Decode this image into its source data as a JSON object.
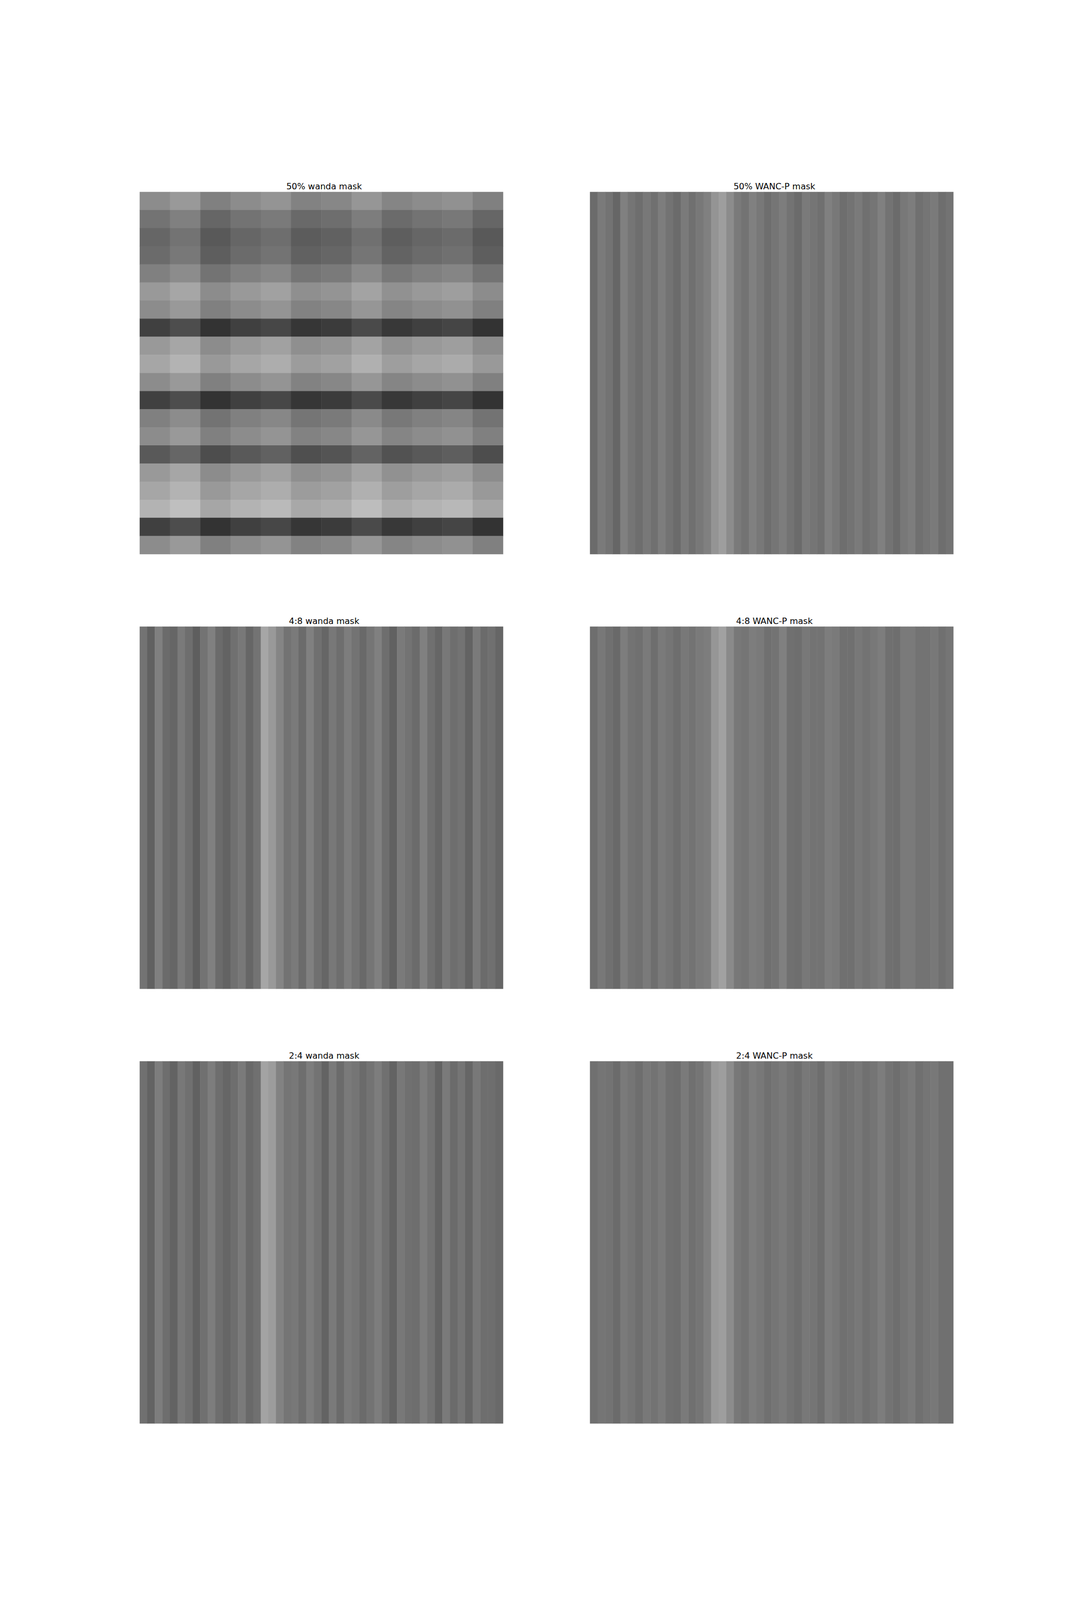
{
  "chart_data": [
    {
      "type": "heatmap",
      "title": "50% wanda mask",
      "tick_labels": false,
      "color_range": [
        0,
        1
      ],
      "cells": [
        [
          0.45,
          0.4,
          0.5,
          0.45,
          0.42,
          0.49,
          0.47,
          0.41,
          0.48,
          0.45,
          0.43,
          0.5
        ],
        [
          0.55,
          0.5,
          0.6,
          0.55,
          0.52,
          0.59,
          0.57,
          0.51,
          0.58,
          0.55,
          0.53,
          0.6
        ],
        [
          0.6,
          0.55,
          0.65,
          0.6,
          0.57,
          0.64,
          0.62,
          0.56,
          0.63,
          0.6,
          0.58,
          0.65
        ],
        [
          0.58,
          0.53,
          0.63,
          0.58,
          0.55,
          0.62,
          0.6,
          0.54,
          0.61,
          0.58,
          0.56,
          0.63
        ],
        [
          0.5,
          0.45,
          0.55,
          0.5,
          0.47,
          0.54,
          0.52,
          0.46,
          0.53,
          0.5,
          0.48,
          0.55
        ],
        [
          0.4,
          0.35,
          0.45,
          0.4,
          0.37,
          0.44,
          0.42,
          0.36,
          0.43,
          0.4,
          0.38,
          0.45
        ],
        [
          0.45,
          0.4,
          0.5,
          0.45,
          0.42,
          0.49,
          0.47,
          0.41,
          0.48,
          0.45,
          0.43,
          0.5
        ],
        [
          0.75,
          0.7,
          0.8,
          0.75,
          0.72,
          0.79,
          0.77,
          0.71,
          0.78,
          0.75,
          0.73,
          0.8
        ],
        [
          0.4,
          0.35,
          0.45,
          0.4,
          0.37,
          0.44,
          0.42,
          0.36,
          0.43,
          0.4,
          0.38,
          0.45
        ],
        [
          0.35,
          0.3,
          0.4,
          0.35,
          0.32,
          0.39,
          0.37,
          0.31,
          0.38,
          0.35,
          0.33,
          0.4
        ],
        [
          0.45,
          0.4,
          0.5,
          0.45,
          0.42,
          0.49,
          0.47,
          0.41,
          0.48,
          0.45,
          0.43,
          0.5
        ],
        [
          0.75,
          0.7,
          0.8,
          0.75,
          0.72,
          0.79,
          0.77,
          0.71,
          0.78,
          0.75,
          0.73,
          0.8
        ],
        [
          0.5,
          0.45,
          0.55,
          0.5,
          0.47,
          0.54,
          0.52,
          0.46,
          0.53,
          0.5,
          0.48,
          0.55
        ],
        [
          0.45,
          0.4,
          0.5,
          0.45,
          0.42,
          0.49,
          0.47,
          0.41,
          0.48,
          0.45,
          0.43,
          0.5
        ],
        [
          0.65,
          0.6,
          0.7,
          0.65,
          0.62,
          0.69,
          0.67,
          0.61,
          0.68,
          0.65,
          0.63,
          0.7
        ],
        [
          0.4,
          0.35,
          0.45,
          0.4,
          0.37,
          0.44,
          0.42,
          0.36,
          0.43,
          0.4,
          0.38,
          0.45
        ],
        [
          0.35,
          0.3,
          0.4,
          0.35,
          0.32,
          0.39,
          0.37,
          0.31,
          0.38,
          0.35,
          0.33,
          0.4
        ],
        [
          0.3,
          0.25,
          0.35,
          0.3,
          0.27,
          0.34,
          0.32,
          0.26,
          0.33,
          0.3,
          0.28,
          0.35
        ],
        [
          0.75,
          0.7,
          0.8,
          0.75,
          0.72,
          0.79,
          0.77,
          0.71,
          0.78,
          0.75,
          0.73,
          0.8
        ],
        [
          0.45,
          0.4,
          0.5,
          0.45,
          0.42,
          0.49,
          0.47,
          0.41,
          0.48,
          0.45,
          0.43,
          0.5
        ]
      ]
    },
    {
      "type": "heatmap",
      "title": "50% WANC-P mask",
      "tick_labels": false,
      "color_range": [
        0,
        1
      ],
      "cells": [
        [
          0.58,
          0.52,
          0.55,
          0.6,
          0.5,
          0.54,
          0.57,
          0.53,
          0.56,
          0.51,
          0.55,
          0.58,
          0.52,
          0.56,
          0.53,
          0.5,
          0.42,
          0.38,
          0.45,
          0.52,
          0.55,
          0.5,
          0.53,
          0.57,
          0.54,
          0.51,
          0.55,
          0.58,
          0.52,
          0.54,
          0.56,
          0.5,
          0.53,
          0.57,
          0.55,
          0.52,
          0.56,
          0.54,
          0.5,
          0.55,
          0.58,
          0.53,
          0.51,
          0.56,
          0.54,
          0.52,
          0.57,
          0.55
        ]
      ]
    },
    {
      "type": "heatmap",
      "title": "4:8 wanda mask",
      "tick_labels": false,
      "color_range": [
        0,
        1
      ],
      "cells": [
        [
          0.55,
          0.62,
          0.5,
          0.58,
          0.6,
          0.52,
          0.57,
          0.63,
          0.55,
          0.5,
          0.58,
          0.61,
          0.56,
          0.53,
          0.6,
          0.55,
          0.35,
          0.4,
          0.48,
          0.55,
          0.52,
          0.58,
          0.5,
          0.56,
          0.6,
          0.53,
          0.57,
          0.51,
          0.55,
          0.59,
          0.54,
          0.5,
          0.57,
          0.62,
          0.52,
          0.55,
          0.58,
          0.5,
          0.56,
          0.6,
          0.53,
          0.57,
          0.55,
          0.61,
          0.52,
          0.58,
          0.56,
          0.6
        ]
      ]
    },
    {
      "type": "heatmap",
      "title": "4:8 WANC-P mask",
      "tick_labels": false,
      "color_range": [
        0,
        1
      ],
      "cells": [
        [
          0.57,
          0.53,
          0.56,
          0.59,
          0.51,
          0.55,
          0.56,
          0.52,
          0.57,
          0.52,
          0.54,
          0.57,
          0.53,
          0.55,
          0.52,
          0.51,
          0.41,
          0.37,
          0.46,
          0.53,
          0.54,
          0.51,
          0.52,
          0.56,
          0.55,
          0.5,
          0.56,
          0.57,
          0.53,
          0.55,
          0.55,
          0.51,
          0.52,
          0.56,
          0.56,
          0.53,
          0.55,
          0.53,
          0.51,
          0.56,
          0.57,
          0.52,
          0.52,
          0.55,
          0.55,
          0.53,
          0.56,
          0.54
        ]
      ]
    },
    {
      "type": "heatmap",
      "title": "2:4 wanda mask",
      "tick_labels": false,
      "color_range": [
        0,
        1
      ],
      "cells": [
        [
          0.56,
          0.61,
          0.51,
          0.57,
          0.61,
          0.53,
          0.56,
          0.62,
          0.56,
          0.51,
          0.57,
          0.6,
          0.57,
          0.52,
          0.59,
          0.56,
          0.36,
          0.39,
          0.49,
          0.54,
          0.53,
          0.57,
          0.51,
          0.55,
          0.61,
          0.52,
          0.58,
          0.52,
          0.54,
          0.58,
          0.55,
          0.51,
          0.56,
          0.61,
          0.53,
          0.56,
          0.57,
          0.51,
          0.55,
          0.61,
          0.52,
          0.58,
          0.54,
          0.6,
          0.53,
          0.57,
          0.57,
          0.59
        ]
      ]
    },
    {
      "type": "heatmap",
      "title": "2:4 WANC-P mask",
      "tick_labels": false,
      "color_range": [
        0,
        1
      ],
      "cells": [
        [
          0.56,
          0.54,
          0.55,
          0.58,
          0.52,
          0.54,
          0.57,
          0.53,
          0.55,
          0.52,
          0.56,
          0.57,
          0.52,
          0.56,
          0.54,
          0.5,
          0.4,
          0.38,
          0.45,
          0.53,
          0.55,
          0.51,
          0.53,
          0.56,
          0.54,
          0.52,
          0.55,
          0.57,
          0.53,
          0.54,
          0.57,
          0.51,
          0.53,
          0.56,
          0.55,
          0.53,
          0.56,
          0.54,
          0.51,
          0.55,
          0.57,
          0.54,
          0.52,
          0.56,
          0.54,
          0.53,
          0.56,
          0.56
        ]
      ]
    }
  ]
}
